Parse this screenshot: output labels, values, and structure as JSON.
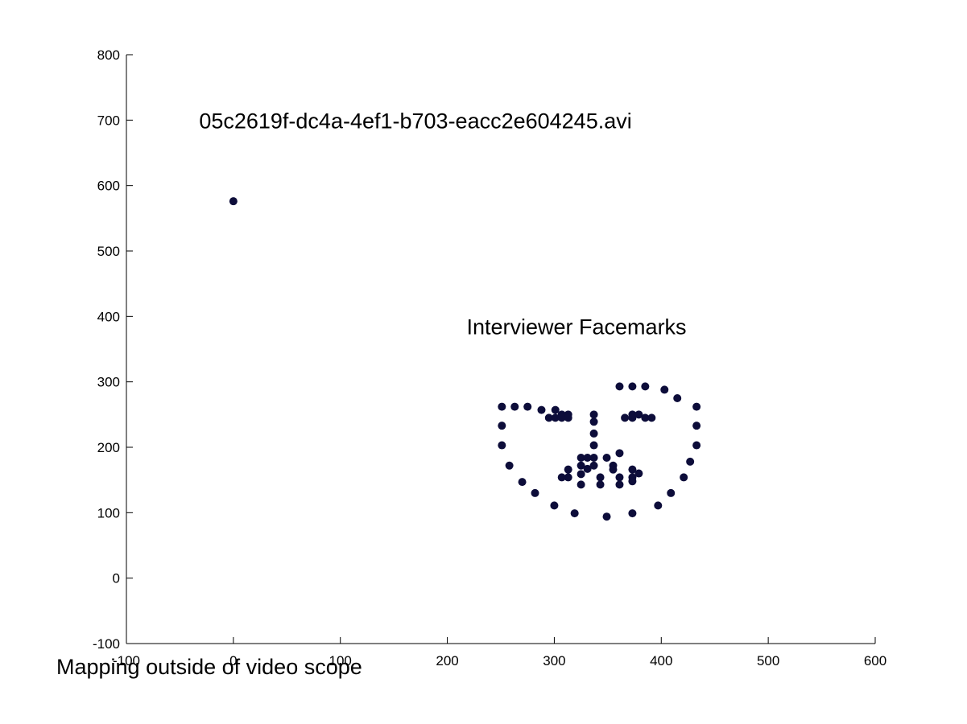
{
  "chart_data": {
    "type": "scatter",
    "xlim": [
      -100,
      600
    ],
    "ylim": [
      -100,
      800
    ],
    "xticks": [
      -100,
      0,
      100,
      200,
      300,
      400,
      500,
      600
    ],
    "yticks": [
      -100,
      0,
      100,
      200,
      300,
      400,
      500,
      600,
      700,
      800
    ],
    "grid": false,
    "marker_color": "#0d0d3a",
    "annotations": [
      {
        "text": "05c2619f-dc4a-4ef1-b703-eacc2e604245.avi",
        "x": -32,
        "y": 700
      },
      {
        "text": "Interviewer Facemarks",
        "x": 218,
        "y": 385
      }
    ],
    "caption": "Mapping outside of video scope",
    "series": [
      {
        "points": [
          [
            0,
            576
          ],
          [
            251,
            262
          ],
          [
            263,
            262
          ],
          [
            275,
            262
          ],
          [
            288,
            257
          ],
          [
            295,
            245
          ],
          [
            301,
            257
          ],
          [
            301,
            245
          ],
          [
            307,
            250
          ],
          [
            307,
            245
          ],
          [
            313,
            250
          ],
          [
            313,
            245
          ],
          [
            337,
            250
          ],
          [
            337,
            239
          ],
          [
            337,
            221
          ],
          [
            337,
            203
          ],
          [
            337,
            184
          ],
          [
            337,
            172
          ],
          [
            361,
            293
          ],
          [
            373,
            293
          ],
          [
            385,
            293
          ],
          [
            366,
            245
          ],
          [
            373,
            245
          ],
          [
            373,
            250
          ],
          [
            379,
            250
          ],
          [
            385,
            245
          ],
          [
            391,
            245
          ],
          [
            403,
            288
          ],
          [
            415,
            275
          ],
          [
            433,
            262
          ],
          [
            433,
            233
          ],
          [
            433,
            203
          ],
          [
            427,
            178
          ],
          [
            421,
            154
          ],
          [
            409,
            130
          ],
          [
            397,
            111
          ],
          [
            373,
            99
          ],
          [
            349,
            94
          ],
          [
            319,
            99
          ],
          [
            300,
            111
          ],
          [
            282,
            130
          ],
          [
            270,
            147
          ],
          [
            258,
            172
          ],
          [
            251,
            203
          ],
          [
            251,
            233
          ],
          [
            325,
            184
          ],
          [
            331,
            184
          ],
          [
            331,
            167
          ],
          [
            325,
            172
          ],
          [
            325,
            159
          ],
          [
            313,
            166
          ],
          [
            313,
            154
          ],
          [
            307,
            154
          ],
          [
            325,
            143
          ],
          [
            343,
            154
          ],
          [
            343,
            143
          ],
          [
            349,
            184
          ],
          [
            355,
            172
          ],
          [
            355,
            166
          ],
          [
            361,
            191
          ],
          [
            361,
            154
          ],
          [
            361,
            143
          ],
          [
            373,
            166
          ],
          [
            373,
            154
          ],
          [
            373,
            148
          ],
          [
            379,
            160
          ]
        ]
      }
    ]
  }
}
